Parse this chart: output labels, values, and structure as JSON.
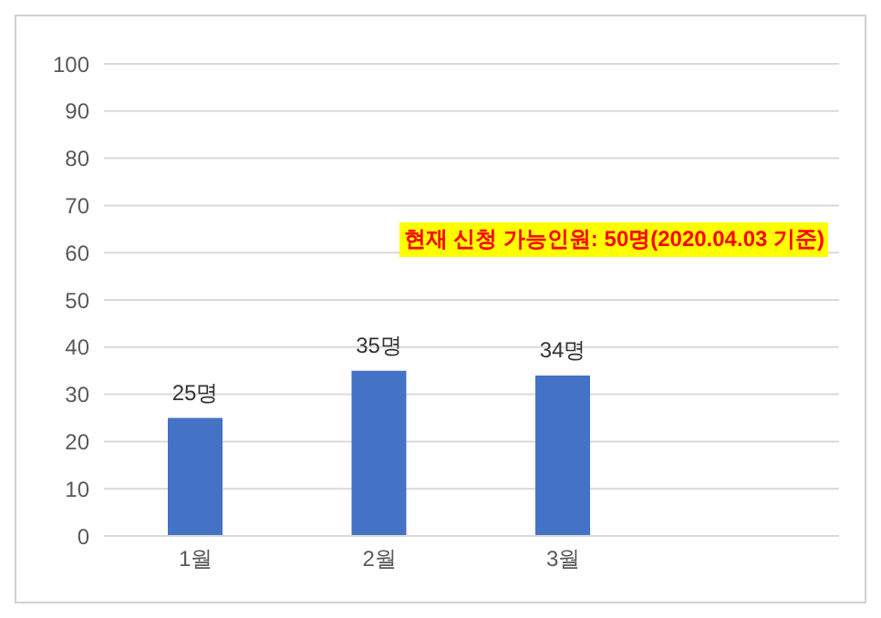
{
  "chart_data": {
    "type": "bar",
    "categories": [
      "1월",
      "2월",
      "3월",
      null
    ],
    "values": [
      25,
      35,
      34,
      null
    ],
    "value_labels": [
      "25명",
      "35명",
      "34명",
      null
    ],
    "color": "#4472c4",
    "ylim": [
      0,
      100
    ],
    "yticks": [
      0,
      10,
      20,
      30,
      40,
      50,
      60,
      70,
      80,
      90,
      100
    ],
    "grid": "y",
    "annotations": [
      "현재 신청 가능인원: 50명(2020.04.03 기준)"
    ]
  }
}
